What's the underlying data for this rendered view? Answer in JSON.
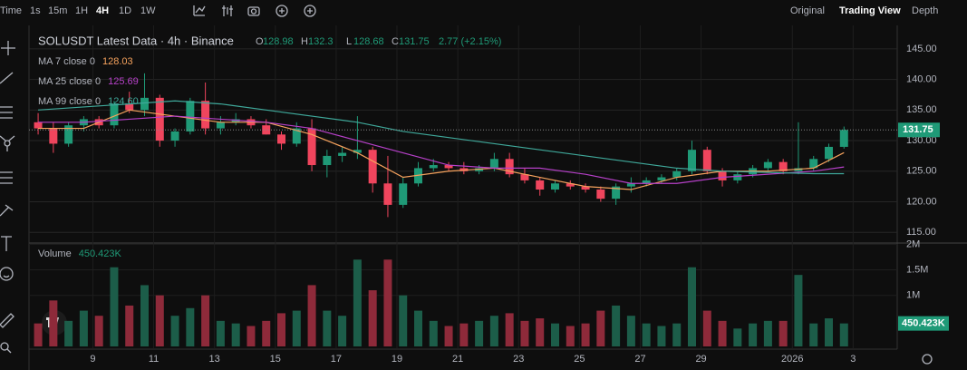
{
  "ui": {
    "timeframes": [
      "Time",
      "1s",
      "15m",
      "1H",
      "4H",
      "1D",
      "1W"
    ],
    "views": [
      "Original",
      "Trading View",
      "Depth"
    ]
  },
  "chart_data": {
    "type": "candlestick",
    "title": "SOLUSDT Latest Data · 4h · Binance",
    "ohlc_letters": [
      "O",
      "H",
      "L",
      "C"
    ],
    "change": "2.77 (+2.15%)",
    "up_color": "#1f9a77",
    "down_color": "#f0455d",
    "up_volume_color": "#1c5d49",
    "down_volume_color": "#8e2a3a",
    "candles": [
      [
        133,
        134.5,
        131,
        132
      ],
      [
        132,
        133,
        128,
        129.5
      ],
      [
        129.5,
        133,
        129,
        132.5
      ],
      [
        132.5,
        134,
        131.5,
        133.5
      ],
      [
        133.5,
        134,
        132,
        132.5
      ],
      [
        132.5,
        136.5,
        132,
        136
      ],
      [
        136,
        138,
        134.5,
        135
      ],
      [
        135,
        141,
        134,
        137
      ],
      [
        137,
        137.5,
        129,
        130
      ],
      [
        130,
        132,
        129,
        131.5
      ],
      [
        131.5,
        137,
        131,
        136.5
      ],
      [
        136.5,
        139.5,
        131,
        132
      ],
      [
        132,
        134,
        131,
        133
      ],
      [
        133,
        134.5,
        132.5,
        133.5
      ],
      [
        133.5,
        134,
        132,
        132.5
      ],
      [
        132.5,
        133.5,
        131,
        131
      ],
      [
        131,
        131.5,
        128.5,
        129.5
      ],
      [
        129.5,
        133,
        129,
        132
      ],
      [
        132,
        133.5,
        125,
        126
      ],
      [
        126,
        128.5,
        124,
        127.5
      ],
      [
        127.5,
        129,
        126.5,
        128
      ],
      [
        128,
        134,
        127,
        128.5
      ],
      [
        128.5,
        129,
        121.5,
        123
      ],
      [
        123,
        127.5,
        117.5,
        119.5
      ],
      [
        119.5,
        124,
        119,
        123
      ],
      [
        123,
        126.5,
        122.5,
        125.5
      ],
      [
        125.5,
        127,
        125,
        126
      ],
      [
        126,
        126.5,
        125,
        125.5
      ],
      [
        125.5,
        126.5,
        124.5,
        125
      ],
      [
        125,
        126,
        124.5,
        125.5
      ],
      [
        125.5,
        128,
        125,
        127
      ],
      [
        127,
        128,
        124,
        124.5
      ],
      [
        124.5,
        125.5,
        123,
        123.5
      ],
      [
        123.5,
        124,
        121,
        122
      ],
      [
        122,
        123.5,
        121.5,
        123
      ],
      [
        123,
        123.5,
        122,
        122.5
      ],
      [
        122.5,
        123,
        121.5,
        122
      ],
      [
        122,
        122.5,
        120,
        120.5
      ],
      [
        120.5,
        123,
        119.5,
        122.5
      ],
      [
        122.5,
        124,
        121.5,
        123
      ],
      [
        123,
        124,
        122.5,
        123.5
      ],
      [
        123.5,
        124.5,
        123,
        124
      ],
      [
        124,
        125.5,
        123.5,
        125
      ],
      [
        125,
        130,
        124.5,
        128.5
      ],
      [
        128.5,
        129,
        124.5,
        125
      ],
      [
        125,
        125.5,
        122.5,
        123.5
      ],
      [
        123.5,
        125,
        123,
        124.5
      ],
      [
        124.5,
        126,
        124,
        125.5
      ],
      [
        125.5,
        127,
        125,
        126.5
      ],
      [
        126.5,
        127,
        124.5,
        125
      ],
      [
        125,
        133,
        124.5,
        125.5
      ],
      [
        125.5,
        127.5,
        125,
        127
      ],
      [
        127,
        129.5,
        126.5,
        128.98
      ],
      [
        128.98,
        132.3,
        128.68,
        131.75
      ]
    ],
    "volume": {
      "name": "Volume",
      "values": [
        450000,
        900000,
        500000,
        700000,
        600000,
        1550000,
        800000,
        1200000,
        1000000,
        600000,
        750000,
        1000000,
        500000,
        450000,
        400000,
        500000,
        650000,
        700000,
        1200000,
        700000,
        600000,
        1700000,
        1100000,
        1700000,
        1000000,
        700000,
        500000,
        400000,
        450000,
        500000,
        600000,
        650000,
        500000,
        550000,
        450000,
        400000,
        450000,
        700000,
        800000,
        600000,
        450000,
        400000,
        450000,
        1550000,
        700000,
        500000,
        350000,
        450000,
        500000,
        500000,
        1400000,
        450000,
        550000,
        450423
      ],
      "last_label": "450.423K"
    },
    "ma_x": [
      0,
      3,
      6,
      9,
      12,
      15,
      18,
      21,
      24,
      27,
      30,
      33,
      36,
      39,
      42,
      45,
      48,
      51,
      53
    ],
    "series": [
      {
        "name": "MA 7 close 0",
        "color": "#f5a25d",
        "legend_value": "128.03",
        "values": [
          132,
          132,
          135,
          134,
          133,
          133,
          131,
          128,
          124,
          125,
          125.5,
          124,
          122.5,
          122,
          124,
          125,
          125,
          125.5,
          128.03
        ]
      },
      {
        "name": "MA 25 close 0",
        "color": "#b640c8",
        "legend_value": "125.69",
        "values": [
          133,
          133,
          133.5,
          134,
          133.5,
          133,
          132,
          130,
          128,
          126,
          125.5,
          125.5,
          124.5,
          123,
          123,
          124,
          124.5,
          125,
          125.69
        ]
      },
      {
        "name": "MA 99 close 0",
        "color": "#3fa89a",
        "legend_value": "124.60",
        "values": [
          135,
          135.5,
          136,
          136.5,
          136,
          135,
          134,
          133,
          131.5,
          130.5,
          129.5,
          128.5,
          127.5,
          126.5,
          125.5,
          125,
          124.8,
          124.6,
          124.6
        ]
      }
    ],
    "xlim": [
      -0.6,
      56.5
    ],
    "xticks": [
      {
        "value": 3.6,
        "label": "9"
      },
      {
        "value": 7.6,
        "label": "11"
      },
      {
        "value": 11.6,
        "label": "13"
      },
      {
        "value": 15.6,
        "label": "15"
      },
      {
        "value": 19.6,
        "label": "17"
      },
      {
        "value": 23.6,
        "label": "19"
      },
      {
        "value": 27.6,
        "label": "21"
      },
      {
        "value": 31.6,
        "label": "23"
      },
      {
        "value": 35.6,
        "label": "25"
      },
      {
        "value": 39.6,
        "label": "27"
      },
      {
        "value": 43.6,
        "label": "29"
      },
      {
        "value": 49.6,
        "label": "2026"
      },
      {
        "value": 53.6,
        "label": "3"
      }
    ],
    "ylim": [
      113.7,
      147.8
    ],
    "yticks": [
      {
        "value": 145,
        "label": "145.00"
      },
      {
        "value": 140,
        "label": "140.00"
      },
      {
        "value": 135,
        "label": "135.00"
      },
      {
        "value": 130,
        "label": "130.00"
      },
      {
        "value": 125,
        "label": "125.00"
      },
      {
        "value": 120,
        "label": "120.00"
      },
      {
        "value": 115,
        "label": "115.00"
      }
    ],
    "volume_ylim": [
      0,
      2060000
    ],
    "volume_yticks": [
      {
        "value": 2000000,
        "label": "2M"
      },
      {
        "value": 1500000,
        "label": "1.5M"
      },
      {
        "value": 1000000,
        "label": "1M"
      }
    ],
    "grid": true
  }
}
